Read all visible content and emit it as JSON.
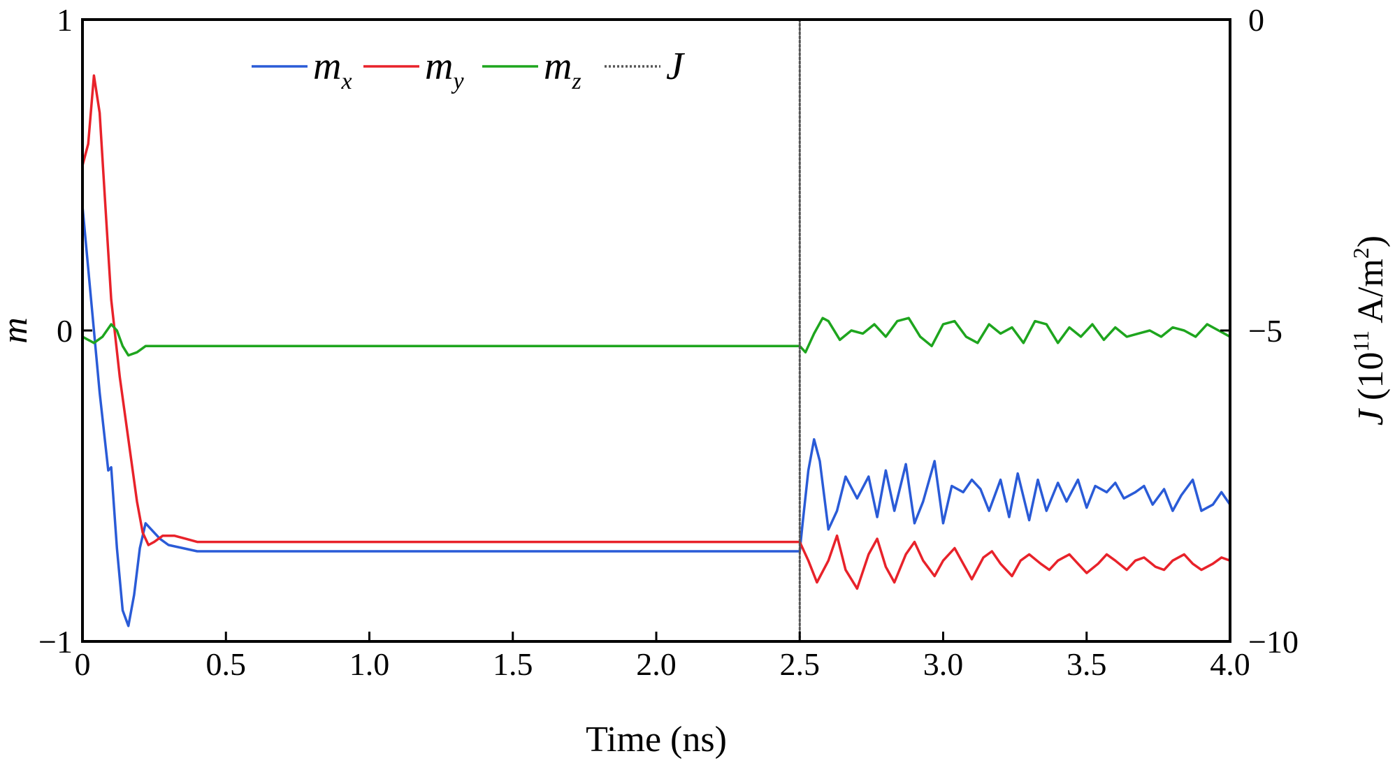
{
  "chart_data": {
    "type": "line",
    "xlabel": "Time (ns)",
    "ylabel": "m",
    "ylabel_right": {
      "symbol": "J",
      "text": " (10",
      "exp": "11",
      "unit": " A/m",
      "unit_exp": "2",
      "close": ")"
    },
    "xlim": [
      0,
      4.0
    ],
    "ylim": [
      -1,
      1
    ],
    "ylim_right": [
      -10,
      0
    ],
    "x_ticks": [
      0,
      0.5,
      1.0,
      1.5,
      2.0,
      2.5,
      3.0,
      3.5,
      4.0
    ],
    "x_tick_labels": [
      "0",
      "0.5",
      "1.0",
      "1.5",
      "2.0",
      "2.5",
      "3.0",
      "3.5",
      "4.0"
    ],
    "y_ticks": [
      -1,
      0,
      1
    ],
    "y_tick_labels": [
      "−1",
      "0",
      "1"
    ],
    "y_ticks_right": [
      -10,
      -5,
      0
    ],
    "y_tick_labels_right": [
      "−10",
      "−5",
      "0"
    ],
    "grid": false,
    "legend_position": "top",
    "colors": {
      "mx": "#2a5bd7",
      "my": "#e8222a",
      "mz": "#1ea51e",
      "J": "#555555"
    },
    "series": [
      {
        "name": "m_x",
        "label_main": "m",
        "label_sub": "x",
        "key": "mx",
        "x": [
          0,
          0.03,
          0.06,
          0.09,
          0.1,
          0.12,
          0.14,
          0.16,
          0.18,
          0.2,
          0.22,
          0.24,
          0.27,
          0.3,
          0.35,
          0.4,
          0.5,
          1.0,
          1.5,
          2.0,
          2.5,
          2.51,
          2.53,
          2.55,
          2.57,
          2.6,
          2.63,
          2.66,
          2.7,
          2.74,
          2.77,
          2.8,
          2.83,
          2.87,
          2.9,
          2.93,
          2.97,
          3.0,
          3.03,
          3.07,
          3.1,
          3.13,
          3.16,
          3.2,
          3.23,
          3.26,
          3.3,
          3.33,
          3.36,
          3.4,
          3.43,
          3.47,
          3.5,
          3.53,
          3.57,
          3.6,
          3.63,
          3.67,
          3.7,
          3.73,
          3.77,
          3.8,
          3.83,
          3.87,
          3.9,
          3.94,
          3.97,
          4.0
        ],
        "y": [
          0.4,
          0.1,
          -0.2,
          -0.45,
          -0.44,
          -0.7,
          -0.9,
          -0.95,
          -0.85,
          -0.7,
          -0.62,
          -0.64,
          -0.67,
          -0.69,
          -0.7,
          -0.71,
          -0.71,
          -0.71,
          -0.71,
          -0.71,
          -0.71,
          -0.62,
          -0.45,
          -0.35,
          -0.42,
          -0.64,
          -0.58,
          -0.47,
          -0.54,
          -0.47,
          -0.6,
          -0.45,
          -0.58,
          -0.43,
          -0.62,
          -0.55,
          -0.42,
          -0.62,
          -0.5,
          -0.52,
          -0.48,
          -0.51,
          -0.58,
          -0.48,
          -0.6,
          -0.46,
          -0.61,
          -0.48,
          -0.58,
          -0.49,
          -0.55,
          -0.48,
          -0.57,
          -0.5,
          -0.52,
          -0.49,
          -0.54,
          -0.52,
          -0.5,
          -0.56,
          -0.51,
          -0.58,
          -0.53,
          -0.48,
          -0.58,
          -0.56,
          -0.52,
          -0.56
        ]
      },
      {
        "name": "m_y",
        "label_main": "m",
        "label_sub": "y",
        "key": "my",
        "x": [
          0,
          0.02,
          0.04,
          0.06,
          0.08,
          0.1,
          0.13,
          0.16,
          0.19,
          0.21,
          0.23,
          0.25,
          0.28,
          0.32,
          0.36,
          0.4,
          0.5,
          1.0,
          1.5,
          2.0,
          2.5,
          2.53,
          2.56,
          2.6,
          2.63,
          2.66,
          2.7,
          2.74,
          2.77,
          2.8,
          2.83,
          2.87,
          2.9,
          2.93,
          2.97,
          3.0,
          3.04,
          3.07,
          3.1,
          3.14,
          3.17,
          3.2,
          3.24,
          3.27,
          3.3,
          3.34,
          3.37,
          3.4,
          3.44,
          3.47,
          3.5,
          3.54,
          3.57,
          3.6,
          3.64,
          3.67,
          3.7,
          3.74,
          3.77,
          3.8,
          3.84,
          3.87,
          3.9,
          3.94,
          3.97,
          4.0
        ],
        "y": [
          0.53,
          0.6,
          0.82,
          0.7,
          0.4,
          0.1,
          -0.15,
          -0.35,
          -0.55,
          -0.65,
          -0.69,
          -0.68,
          -0.66,
          -0.66,
          -0.67,
          -0.68,
          -0.68,
          -0.68,
          -0.68,
          -0.68,
          -0.68,
          -0.74,
          -0.81,
          -0.74,
          -0.66,
          -0.77,
          -0.83,
          -0.72,
          -0.67,
          -0.76,
          -0.81,
          -0.72,
          -0.68,
          -0.74,
          -0.79,
          -0.74,
          -0.7,
          -0.75,
          -0.8,
          -0.73,
          -0.71,
          -0.75,
          -0.79,
          -0.74,
          -0.72,
          -0.75,
          -0.77,
          -0.74,
          -0.72,
          -0.75,
          -0.78,
          -0.75,
          -0.72,
          -0.74,
          -0.77,
          -0.74,
          -0.73,
          -0.76,
          -0.77,
          -0.74,
          -0.72,
          -0.75,
          -0.77,
          -0.75,
          -0.73,
          -0.74
        ]
      },
      {
        "name": "m_z",
        "label_main": "m",
        "label_sub": "z",
        "key": "mz",
        "x": [
          0,
          0.04,
          0.07,
          0.1,
          0.12,
          0.14,
          0.16,
          0.19,
          0.22,
          0.26,
          0.3,
          0.4,
          0.5,
          1.0,
          1.5,
          2.0,
          2.5,
          2.52,
          2.55,
          2.58,
          2.6,
          2.64,
          2.68,
          2.72,
          2.76,
          2.8,
          2.84,
          2.88,
          2.92,
          2.96,
          3.0,
          3.04,
          3.08,
          3.12,
          3.16,
          3.2,
          3.24,
          3.28,
          3.32,
          3.36,
          3.4,
          3.44,
          3.48,
          3.52,
          3.56,
          3.6,
          3.64,
          3.68,
          3.72,
          3.76,
          3.8,
          3.84,
          3.88,
          3.92,
          3.96,
          4.0
        ],
        "y": [
          -0.02,
          -0.04,
          -0.02,
          0.02,
          0.0,
          -0.05,
          -0.08,
          -0.07,
          -0.05,
          -0.05,
          -0.05,
          -0.05,
          -0.05,
          -0.05,
          -0.05,
          -0.05,
          -0.05,
          -0.07,
          -0.01,
          0.04,
          0.03,
          -0.03,
          0.0,
          -0.01,
          0.02,
          -0.02,
          0.03,
          0.04,
          -0.02,
          -0.05,
          0.02,
          0.03,
          -0.02,
          -0.04,
          0.02,
          -0.01,
          0.01,
          -0.04,
          0.03,
          0.02,
          -0.04,
          0.01,
          -0.02,
          0.02,
          -0.03,
          0.01,
          -0.02,
          -0.01,
          0.0,
          -0.02,
          0.01,
          0.0,
          -0.02,
          0.02,
          0.0,
          -0.02
        ]
      },
      {
        "name": "J",
        "label_main": "J",
        "label_sub": "",
        "key": "J",
        "axis": "right",
        "x": [
          2.5,
          2.5
        ],
        "y": [
          0,
          -10
        ]
      }
    ]
  }
}
